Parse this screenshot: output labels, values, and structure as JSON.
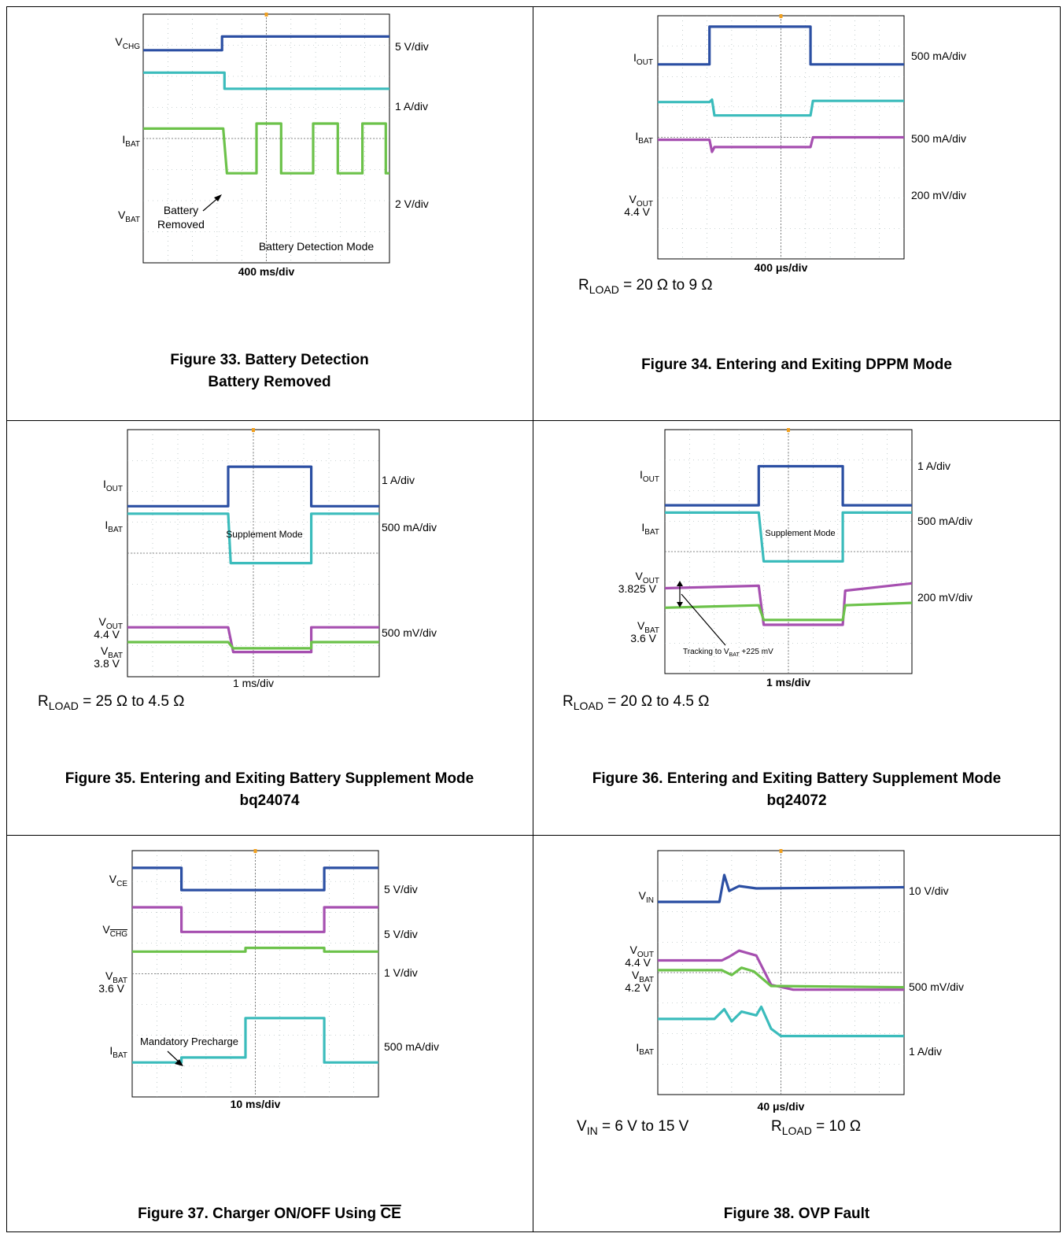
{
  "figures": [
    {
      "id": "fig33",
      "caption_lines": [
        "Figure 33. Battery Detection",
        "Battery Removed"
      ],
      "conditions": [],
      "chart_data": {
        "type": "line",
        "timebase": "400 ms/div",
        "labels": [
          {
            "main": "V",
            "sub": "CHG",
            "sub_overline": false,
            "value": ""
          },
          {
            "main": "I",
            "sub": "BAT",
            "sub_overline": false,
            "value": ""
          },
          {
            "main": "V",
            "sub": "BAT",
            "sub_overline": false,
            "value": ""
          }
        ],
        "scales": [
          "5 V/div",
          "1 A/div",
          "2 V/div"
        ],
        "annotations": [
          "Battery\nRemoved",
          "Battery Detection Mode"
        ],
        "traces": [
          {
            "color": "#2b4fa3",
            "y_div": [
              [
                0,
                1.45
              ],
              [
                3.2,
                1.45
              ],
              [
                3.2,
                0.9
              ],
              [
                10,
                0.9
              ]
            ]
          },
          {
            "color": "#3bbcbc",
            "y_div": [
              [
                0,
                2.35
              ],
              [
                3.3,
                2.35
              ],
              [
                3.3,
                3.0
              ],
              [
                10,
                3.0
              ]
            ]
          },
          {
            "color": "#6cc24a",
            "y_div": [
              [
                0,
                4.6
              ],
              [
                3.25,
                4.6
              ],
              [
                3.4,
                6.4
              ],
              [
                4.6,
                6.4
              ],
              [
                4.6,
                4.4
              ],
              [
                5.6,
                4.4
              ],
              [
                5.6,
                6.4
              ],
              [
                6.9,
                6.4
              ],
              [
                6.9,
                4.4
              ],
              [
                7.9,
                4.4
              ],
              [
                7.9,
                6.4
              ],
              [
                8.9,
                6.4
              ],
              [
                8.9,
                4.4
              ],
              [
                9.85,
                4.4
              ],
              [
                9.85,
                6.4
              ],
              [
                10,
                6.4
              ]
            ]
          }
        ]
      }
    },
    {
      "id": "fig34",
      "caption_lines": [
        "Figure 34. Entering and Exiting DPPM Mode"
      ],
      "conditions": [
        {
          "main": "R",
          "sub": "LOAD",
          "rest": " = 20 Ω to 9 Ω"
        }
      ],
      "chart_data": {
        "type": "line",
        "timebase": "400 μs/div",
        "labels": [
          {
            "main": "I",
            "sub": "OUT",
            "sub_overline": false,
            "value": ""
          },
          {
            "main": "I",
            "sub": "BAT",
            "sub_overline": false,
            "value": ""
          },
          {
            "main": "V",
            "sub": "OUT",
            "sub_overline": false,
            "value": "4.4 V"
          }
        ],
        "scales": [
          "500 mA/div",
          "500 mA/div",
          "200 mV/div"
        ],
        "annotations": [],
        "traces": [
          {
            "color": "#2b4fa3",
            "y_div": [
              [
                0,
                2.0
              ],
              [
                2.1,
                2.0
              ],
              [
                2.1,
                0.45
              ],
              [
                6.2,
                0.45
              ],
              [
                6.2,
                2.0
              ],
              [
                10,
                2.0
              ]
            ]
          },
          {
            "color": "#3bbcbc",
            "y_div": [
              [
                0,
                3.55
              ],
              [
                2.1,
                3.55
              ],
              [
                2.2,
                3.45
              ],
              [
                2.3,
                4.1
              ],
              [
                6.2,
                4.1
              ],
              [
                6.3,
                3.5
              ],
              [
                10,
                3.5
              ]
            ]
          },
          {
            "color": "#a64fb0",
            "y_div": [
              [
                0,
                5.1
              ],
              [
                2.1,
                5.1
              ],
              [
                2.2,
                5.6
              ],
              [
                2.3,
                5.4
              ],
              [
                6.2,
                5.4
              ],
              [
                6.3,
                5.0
              ],
              [
                10,
                5.0
              ]
            ]
          }
        ]
      }
    },
    {
      "id": "fig35",
      "caption_lines": [
        "Figure 35. Entering and Exiting Battery Supplement Mode",
        "bq24074"
      ],
      "conditions": [
        {
          "main": "R",
          "sub": "LOAD",
          "rest": " = 25 Ω to 4.5 Ω"
        }
      ],
      "chart_data": {
        "type": "line",
        "timebase": "1 ms/div",
        "labels": [
          {
            "main": "I",
            "sub": "OUT",
            "sub_overline": false,
            "value": ""
          },
          {
            "main": "I",
            "sub": "BAT",
            "sub_overline": false,
            "value": ""
          },
          {
            "main": "V",
            "sub": "OUT",
            "sub_overline": false,
            "value": "4.4 V"
          },
          {
            "main": "V",
            "sub": "BAT",
            "sub_overline": false,
            "value": "3.8 V"
          }
        ],
        "scales": [
          "1 A/div",
          "500 mA/div",
          "500 mV/div"
        ],
        "annotations": [
          "Supplement Mode"
        ],
        "traces": [
          {
            "color": "#2b4fa3",
            "y_div": [
              [
                0,
                3.1
              ],
              [
                4.0,
                3.1
              ],
              [
                4.0,
                1.5
              ],
              [
                7.3,
                1.5
              ],
              [
                7.3,
                3.1
              ],
              [
                10,
                3.1
              ]
            ]
          },
          {
            "color": "#3bbcbc",
            "y_div": [
              [
                0,
                3.4
              ],
              [
                4.0,
                3.4
              ],
              [
                4.1,
                5.4
              ],
              [
                7.3,
                5.4
              ],
              [
                7.3,
                3.4
              ],
              [
                10,
                3.4
              ]
            ]
          },
          {
            "color": "#a64fb0",
            "y_div": [
              [
                0,
                8.0
              ],
              [
                4.0,
                8.0
              ],
              [
                4.2,
                9.0
              ],
              [
                7.3,
                9.0
              ],
              [
                7.3,
                8.0
              ],
              [
                10,
                8.0
              ]
            ]
          },
          {
            "color": "#6cc24a",
            "y_div": [
              [
                0,
                8.6
              ],
              [
                4.0,
                8.6
              ],
              [
                4.2,
                8.85
              ],
              [
                7.3,
                8.85
              ],
              [
                7.3,
                8.6
              ],
              [
                10,
                8.6
              ]
            ]
          }
        ]
      }
    },
    {
      "id": "fig36",
      "caption_lines": [
        "Figure 36. Entering and Exiting Battery Supplement Mode",
        "bq24072"
      ],
      "conditions": [
        {
          "main": "R",
          "sub": "LOAD",
          "rest": " = 20 Ω to 4.5 Ω"
        }
      ],
      "chart_data": {
        "type": "line",
        "timebase": "1 ms/div",
        "labels": [
          {
            "main": "I",
            "sub": "OUT",
            "sub_overline": false,
            "value": ""
          },
          {
            "main": "I",
            "sub": "BAT",
            "sub_overline": false,
            "value": ""
          },
          {
            "main": "V",
            "sub": "OUT",
            "sub_overline": false,
            "value": "3.825 V"
          },
          {
            "main": "V",
            "sub": "BAT",
            "sub_overline": false,
            "value": "3.6 V"
          }
        ],
        "scales": [
          "1 A/div",
          "500 mA/div",
          "200 mV/div"
        ],
        "annotations": [
          "Supplement Mode",
          "Tracking to V",
          "BAT",
          " +225 mV"
        ],
        "traces": [
          {
            "color": "#2b4fa3",
            "y_div": [
              [
                0,
                3.1
              ],
              [
                3.8,
                3.1
              ],
              [
                3.8,
                1.5
              ],
              [
                7.2,
                1.5
              ],
              [
                7.2,
                3.1
              ],
              [
                10,
                3.1
              ]
            ]
          },
          {
            "color": "#3bbcbc",
            "y_div": [
              [
                0,
                3.4
              ],
              [
                3.8,
                3.4
              ],
              [
                4.0,
                5.4
              ],
              [
                7.2,
                5.4
              ],
              [
                7.2,
                3.4
              ],
              [
                10,
                3.4
              ]
            ]
          },
          {
            "color": "#a64fb0",
            "y_div": [
              [
                0,
                6.5
              ],
              [
                3.8,
                6.4
              ],
              [
                4.0,
                8.0
              ],
              [
                7.2,
                8.0
              ],
              [
                7.3,
                6.6
              ],
              [
                10,
                6.3
              ]
            ]
          },
          {
            "color": "#6cc24a",
            "y_div": [
              [
                0,
                7.3
              ],
              [
                3.8,
                7.2
              ],
              [
                4.0,
                7.8
              ],
              [
                7.2,
                7.8
              ],
              [
                7.3,
                7.2
              ],
              [
                10,
                7.1
              ]
            ]
          }
        ]
      }
    },
    {
      "id": "fig37",
      "caption_lines": [
        "Figure 37. Charger ON/OFF Using CE"
      ],
      "caption_overline_tail": "CE",
      "conditions": [],
      "chart_data": {
        "type": "line",
        "timebase": "10 ms/div",
        "labels": [
          {
            "main": "V",
            "sub": "CE",
            "sub_overline": false,
            "value": ""
          },
          {
            "main": "V",
            "sub": "CHG",
            "sub_overline": true,
            "value": ""
          },
          {
            "main": "V",
            "sub": "BAT",
            "sub_overline": false,
            "value": "3.6 V"
          },
          {
            "main": "I",
            "sub": "BAT",
            "sub_overline": false,
            "value": ""
          }
        ],
        "scales": [
          "5 V/div",
          "5 V/div",
          "1 V/div",
          "500 mA/div"
        ],
        "annotations": [
          "Mandatory Precharge"
        ],
        "traces": [
          {
            "color": "#2b4fa3",
            "y_div": [
              [
                0,
                0.7
              ],
              [
                2.0,
                0.7
              ],
              [
                2.0,
                1.6
              ],
              [
                7.8,
                1.6
              ],
              [
                7.8,
                0.7
              ],
              [
                10,
                0.7
              ]
            ]
          },
          {
            "color": "#a64fb0",
            "y_div": [
              [
                0,
                2.3
              ],
              [
                2.0,
                2.3
              ],
              [
                2.0,
                3.3
              ],
              [
                7.8,
                3.3
              ],
              [
                7.8,
                2.3
              ],
              [
                10,
                2.3
              ]
            ]
          },
          {
            "color": "#6cc24a",
            "y_div": [
              [
                0,
                4.1
              ],
              [
                4.6,
                4.1
              ],
              [
                4.6,
                3.95
              ],
              [
                7.8,
                3.95
              ],
              [
                7.8,
                4.1
              ],
              [
                10,
                4.1
              ]
            ]
          },
          {
            "color": "#3bbcbc",
            "y_div": [
              [
                0,
                8.6
              ],
              [
                2.0,
                8.6
              ],
              [
                2.0,
                8.4
              ],
              [
                4.6,
                8.4
              ],
              [
                4.6,
                6.8
              ],
              [
                7.8,
                6.8
              ],
              [
                7.8,
                8.6
              ],
              [
                10,
                8.6
              ]
            ]
          }
        ]
      }
    },
    {
      "id": "fig38",
      "caption_lines": [
        "Figure 38. OVP Fault"
      ],
      "conditions": [
        {
          "main": "V",
          "sub": "IN",
          "rest": " = 6 V to 15 V"
        },
        {
          "main": "R",
          "sub": "LOAD",
          "rest": " = 10 Ω"
        }
      ],
      "chart_data": {
        "type": "line",
        "timebase": "40 μs/div",
        "labels": [
          {
            "main": "V",
            "sub": "IN",
            "sub_overline": false,
            "value": ""
          },
          {
            "main": "V",
            "sub": "OUT",
            "sub_overline": false,
            "value": "4.4 V"
          },
          {
            "main": "V",
            "sub": "BAT",
            "sub_overline": false,
            "value": "4.2 V"
          },
          {
            "main": "I",
            "sub": "BAT",
            "sub_overline": false,
            "value": ""
          }
        ],
        "scales": [
          "10 V/div",
          "500 mV/div",
          "1 A/div"
        ],
        "annotations": [],
        "traces": [
          {
            "color": "#2b4fa3",
            "y_div": [
              [
                0,
                2.1
              ],
              [
                2.5,
                2.1
              ],
              [
                2.7,
                1.0
              ],
              [
                2.9,
                1.65
              ],
              [
                3.3,
                1.45
              ],
              [
                4.0,
                1.55
              ],
              [
                10,
                1.5
              ]
            ]
          },
          {
            "color": "#a64fb0",
            "y_div": [
              [
                0,
                4.5
              ],
              [
                2.6,
                4.5
              ],
              [
                2.9,
                4.35
              ],
              [
                3.3,
                4.1
              ],
              [
                4.0,
                4.3
              ],
              [
                4.6,
                5.5
              ],
              [
                5.5,
                5.7
              ],
              [
                10,
                5.7
              ]
            ]
          },
          {
            "color": "#6cc24a",
            "y_div": [
              [
                0,
                4.9
              ],
              [
                2.6,
                4.9
              ],
              [
                3.0,
                5.1
              ],
              [
                3.4,
                4.8
              ],
              [
                3.9,
                4.95
              ],
              [
                4.6,
                5.55
              ],
              [
                10,
                5.6
              ]
            ]
          },
          {
            "color": "#3bbcbc",
            "y_div": [
              [
                0,
                6.9
              ],
              [
                2.3,
                6.9
              ],
              [
                2.7,
                6.5
              ],
              [
                3.0,
                7.0
              ],
              [
                3.4,
                6.6
              ],
              [
                4.0,
                6.75
              ],
              [
                4.2,
                6.4
              ],
              [
                4.6,
                7.3
              ],
              [
                5.0,
                7.6
              ],
              [
                10,
                7.6
              ]
            ]
          }
        ]
      }
    }
  ]
}
